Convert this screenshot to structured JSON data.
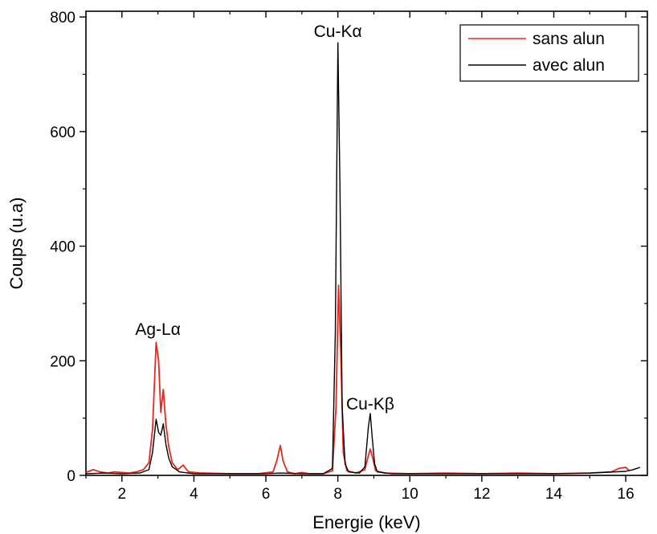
{
  "chart_data": {
    "type": "line",
    "title": "",
    "xlabel": "Energie (keV)",
    "ylabel": "Coups (u.a)",
    "xlim": [
      1,
      16.6
    ],
    "ylim": [
      0,
      810
    ],
    "xticks": [
      2,
      4,
      6,
      8,
      10,
      12,
      14,
      16
    ],
    "yticks": [
      0,
      200,
      400,
      600,
      800
    ],
    "legend": {
      "placement": "top-right"
    },
    "grid": false,
    "annotations": [
      {
        "text": "Ag-Lα",
        "x": 3.0,
        "y": 245
      },
      {
        "text": "Cu-Kα",
        "x": 8.0,
        "y": 765
      },
      {
        "text": "Cu-Kβ",
        "x": 8.9,
        "y": 115
      }
    ],
    "series": [
      {
        "name": "sans alun",
        "color": "#e8281e",
        "points": [
          [
            1.0,
            5
          ],
          [
            1.2,
            10
          ],
          [
            1.4,
            6
          ],
          [
            1.6,
            4
          ],
          [
            1.8,
            6
          ],
          [
            2.0,
            5
          ],
          [
            2.2,
            4
          ],
          [
            2.4,
            6
          ],
          [
            2.6,
            10
          ],
          [
            2.75,
            22
          ],
          [
            2.85,
            80
          ],
          [
            2.95,
            232
          ],
          [
            3.02,
            200
          ],
          [
            3.08,
            110
          ],
          [
            3.15,
            150
          ],
          [
            3.22,
            90
          ],
          [
            3.3,
            50
          ],
          [
            3.4,
            22
          ],
          [
            3.55,
            10
          ],
          [
            3.7,
            18
          ],
          [
            3.85,
            6
          ],
          [
            4.2,
            4
          ],
          [
            5.0,
            3
          ],
          [
            5.8,
            3
          ],
          [
            6.2,
            6
          ],
          [
            6.3,
            25
          ],
          [
            6.4,
            52
          ],
          [
            6.48,
            25
          ],
          [
            6.6,
            6
          ],
          [
            6.8,
            3
          ],
          [
            7.0,
            5
          ],
          [
            7.2,
            3
          ],
          [
            7.6,
            3
          ],
          [
            7.85,
            8
          ],
          [
            7.95,
            120
          ],
          [
            8.02,
            332
          ],
          [
            8.08,
            220
          ],
          [
            8.15,
            40
          ],
          [
            8.25,
            8
          ],
          [
            8.5,
            4
          ],
          [
            8.75,
            10
          ],
          [
            8.85,
            35
          ],
          [
            8.9,
            46
          ],
          [
            8.97,
            30
          ],
          [
            9.05,
            8
          ],
          [
            9.3,
            4
          ],
          [
            10.0,
            3
          ],
          [
            11.0,
            4
          ],
          [
            12.0,
            3
          ],
          [
            13.0,
            4
          ],
          [
            14.0,
            3
          ],
          [
            15.0,
            4
          ],
          [
            15.6,
            6
          ],
          [
            15.8,
            12
          ],
          [
            16.0,
            14
          ],
          [
            16.1,
            8
          ]
        ]
      },
      {
        "name": "avec alun",
        "color": "#000000",
        "points": [
          [
            1.0,
            3
          ],
          [
            1.5,
            4
          ],
          [
            2.0,
            3
          ],
          [
            2.5,
            4
          ],
          [
            2.75,
            10
          ],
          [
            2.85,
            40
          ],
          [
            2.95,
            98
          ],
          [
            3.02,
            75
          ],
          [
            3.08,
            70
          ],
          [
            3.15,
            90
          ],
          [
            3.22,
            55
          ],
          [
            3.3,
            30
          ],
          [
            3.4,
            15
          ],
          [
            3.6,
            6
          ],
          [
            4.0,
            3
          ],
          [
            5.0,
            3
          ],
          [
            6.0,
            3
          ],
          [
            6.4,
            4
          ],
          [
            7.0,
            3
          ],
          [
            7.6,
            3
          ],
          [
            7.85,
            12
          ],
          [
            7.93,
            250
          ],
          [
            8.0,
            755
          ],
          [
            8.06,
            500
          ],
          [
            8.12,
            120
          ],
          [
            8.2,
            20
          ],
          [
            8.3,
            6
          ],
          [
            8.6,
            4
          ],
          [
            8.75,
            15
          ],
          [
            8.85,
            85
          ],
          [
            8.9,
            108
          ],
          [
            8.95,
            70
          ],
          [
            9.02,
            20
          ],
          [
            9.1,
            6
          ],
          [
            9.5,
            3
          ],
          [
            10.0,
            3
          ],
          [
            12.0,
            3
          ],
          [
            14.0,
            3
          ],
          [
            15.0,
            4
          ],
          [
            16.0,
            7
          ],
          [
            16.2,
            10
          ],
          [
            16.3,
            12
          ],
          [
            16.4,
            14
          ]
        ]
      }
    ]
  }
}
